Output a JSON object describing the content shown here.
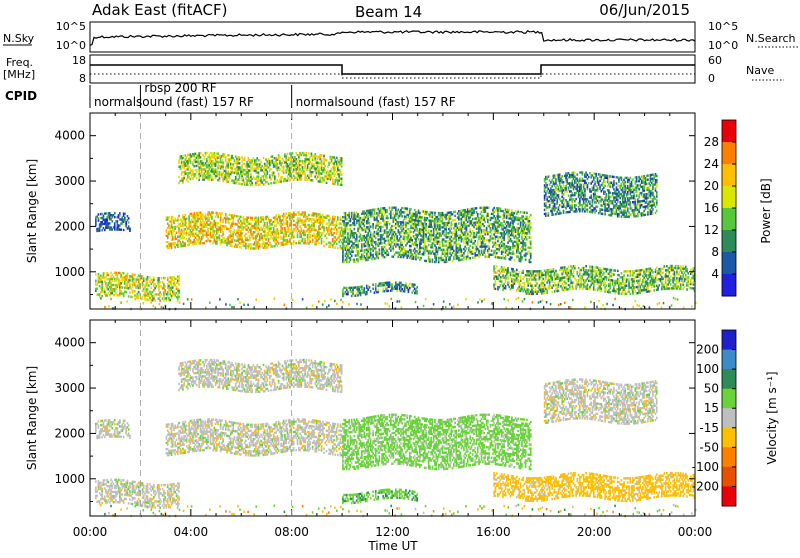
{
  "header": {
    "station": "Adak East (fitACF)",
    "beam": "Beam 14",
    "date": "06/Jun/2015"
  },
  "strip_labels": {
    "nsky": "N.Sky",
    "nsearch": "N.Search",
    "freq_line1": "Freq.",
    "freq_line2": "[MHz]",
    "nave": "Nave",
    "cpid": "CPID"
  },
  "strip_ticks": {
    "nsky_left": [
      "10^5",
      "10^0"
    ],
    "nsearch_right": [
      "10^5",
      "10^0"
    ],
    "freq_left": [
      "18",
      "8"
    ],
    "nave_right": [
      "60",
      "0"
    ]
  },
  "cpid_segments": [
    {
      "label": "normalsound (fast) 157 RF",
      "start": 0.0
    },
    {
      "label": "rbsp 200 RF",
      "start": 2.0
    },
    {
      "label": "normalsound (fast) 157 RF",
      "start": 8.0
    }
  ],
  "chart_data": [
    {
      "type": "heatmap",
      "ylabel": "Slant Range [km]",
      "xlabel": "Time UT",
      "xlim": [
        0,
        24
      ],
      "ylim": [
        180,
        4500
      ],
      "x_ticks": [
        "00:00",
        "04:00",
        "08:00",
        "12:00",
        "16:00",
        "20:00",
        "00:00"
      ],
      "y_ticks": [
        1000,
        2000,
        3000,
        4000
      ],
      "colorbar": {
        "label": "Power [dB]",
        "ticks": [
          "28",
          "24",
          "20",
          "16",
          "12",
          "8",
          "4"
        ],
        "colors": [
          "#e8000b",
          "#ff7f00",
          "#ffbf00",
          "#d8e600",
          "#58c83a",
          "#2e8a57",
          "#1c57a8",
          "#2020e0"
        ]
      },
      "echo_bands": [
        {
          "t0": 0.2,
          "t1": 1.6,
          "r0": 1900,
          "r1": 2300,
          "power": 6
        },
        {
          "t0": 0.2,
          "t1": 3.5,
          "r0": 450,
          "r1": 950,
          "power": 18
        },
        {
          "t0": 3.0,
          "t1": 10.0,
          "r0": 1600,
          "r1": 2300,
          "power": 20
        },
        {
          "t0": 3.5,
          "t1": 10.0,
          "r0": 3000,
          "r1": 3600,
          "power": 16
        },
        {
          "t0": 10.0,
          "t1": 17.5,
          "r0": 1300,
          "r1": 2400,
          "power": 12
        },
        {
          "t0": 10.0,
          "t1": 13.0,
          "r0": 550,
          "r1": 750,
          "power": 10
        },
        {
          "t0": 18.0,
          "t1": 22.5,
          "r0": 2300,
          "r1": 3200,
          "power": 10
        },
        {
          "t0": 16.0,
          "t1": 24.0,
          "r0": 600,
          "r1": 1100,
          "power": 14
        }
      ]
    },
    {
      "type": "heatmap",
      "ylabel": "Slant Range [km]",
      "xlabel": "Time UT",
      "xlim": [
        0,
        24
      ],
      "ylim": [
        180,
        4500
      ],
      "x_ticks": [
        "00:00",
        "04:00",
        "08:00",
        "12:00",
        "16:00",
        "20:00",
        "00:00"
      ],
      "y_ticks": [
        1000,
        2000,
        3000,
        4000
      ],
      "colorbar": {
        "label": "Velocity [m s⁻¹]",
        "ticks": [
          "200",
          "100",
          "50",
          "15",
          "-15",
          "-50",
          "-100",
          "-200"
        ],
        "colors": [
          "#2020c8",
          "#3c8ac8",
          "#2e8a57",
          "#6ad23a",
          "#bfbfbf",
          "#ffbf00",
          "#ff7f00",
          "#e85000",
          "#e8000b"
        ]
      },
      "echo_bands": [
        {
          "t0": 0.2,
          "t1": 1.6,
          "r0": 1900,
          "r1": 2300,
          "velocity": 0
        },
        {
          "t0": 0.2,
          "t1": 3.5,
          "r0": 450,
          "r1": 950,
          "velocity": 0
        },
        {
          "t0": 3.0,
          "t1": 10.0,
          "r0": 1600,
          "r1": 2300,
          "velocity": 0
        },
        {
          "t0": 3.5,
          "t1": 10.0,
          "r0": 3000,
          "r1": 3600,
          "velocity": 0
        },
        {
          "t0": 10.0,
          "t1": 17.5,
          "r0": 1300,
          "r1": 2400,
          "velocity": 30
        },
        {
          "t0": 10.0,
          "t1": 13.0,
          "r0": 550,
          "r1": 750,
          "velocity": 40
        },
        {
          "t0": 18.0,
          "t1": 22.5,
          "r0": 2300,
          "r1": 3200,
          "velocity": 0
        },
        {
          "t0": 16.0,
          "t1": 24.0,
          "r0": 600,
          "r1": 1100,
          "velocity": -30
        }
      ]
    }
  ]
}
